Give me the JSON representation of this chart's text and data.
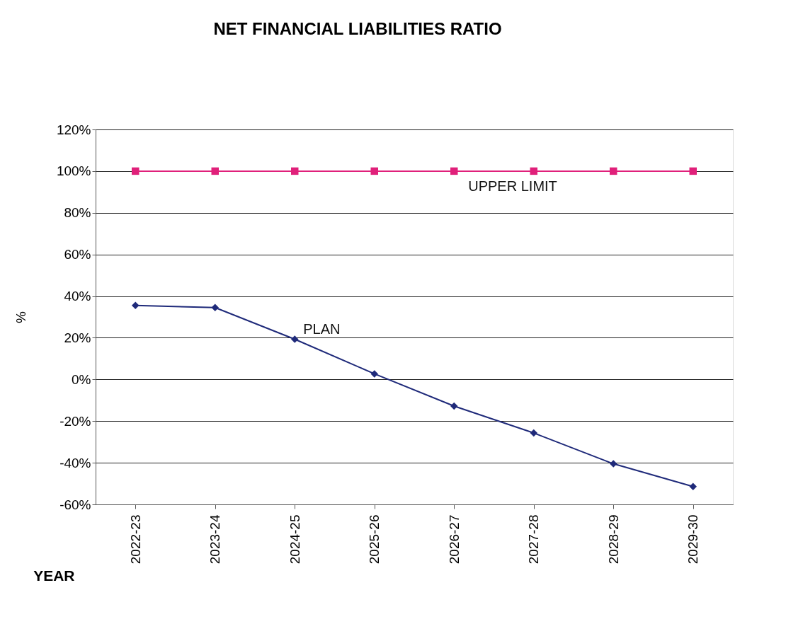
{
  "chart_data": {
    "type": "line",
    "title": "NET FINANCIAL LIABILITIES RATIO",
    "xlabel": "YEAR",
    "ylabel": "%",
    "categories": [
      "2022-23",
      "2023-24",
      "2024-25",
      "2025-26",
      "2026-27",
      "2027-28",
      "2028-29",
      "2029-30"
    ],
    "series": [
      {
        "name": "UPPER LIMIT",
        "color": "#e0207a",
        "marker": "square",
        "values": [
          100,
          100,
          100,
          100,
          100,
          100,
          100,
          100
        ]
      },
      {
        "name": "PLAN",
        "color": "#1f2a7a",
        "marker": "diamond",
        "values": [
          35.5,
          34.5,
          19.3,
          2.7,
          -12.8,
          -25.7,
          -40.5,
          -51.4
        ]
      }
    ],
    "ylim": [
      -60,
      120
    ],
    "yticks": [
      {
        "value": -60,
        "label": "-60%"
      },
      {
        "value": -40,
        "label": "-40%"
      },
      {
        "value": -20,
        "label": "-20%"
      },
      {
        "value": 0,
        "label": "0%"
      },
      {
        "value": 20,
        "label": "20%"
      },
      {
        "value": 40,
        "label": "40%"
      },
      {
        "value": 60,
        "label": "60%"
      },
      {
        "value": 80,
        "label": "80%"
      },
      {
        "value": 100,
        "label": "100%"
      },
      {
        "value": 120,
        "label": "120%"
      }
    ],
    "grid": "y",
    "line_style": "solid"
  }
}
